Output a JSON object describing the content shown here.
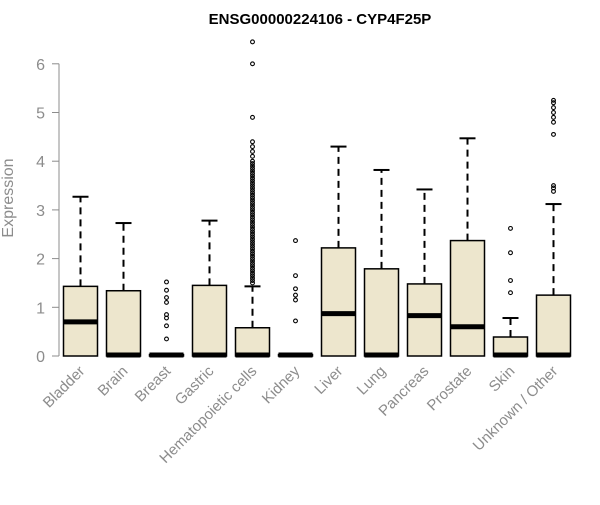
{
  "chart_data": {
    "type": "boxplot",
    "title": "ENSG00000224106 - CYP4F25P",
    "xlabel": "",
    "ylabel": "Expression",
    "ylim": [
      0,
      6.5
    ],
    "yticks": [
      0,
      1,
      2,
      3,
      4,
      5,
      6
    ],
    "grid": false,
    "legend": "none",
    "colors": {
      "box_fill": "#ede6cd",
      "box_stroke": "#000000",
      "axis_text": "#8c8c8c",
      "title": "#000000"
    },
    "categories": [
      "Bladder",
      "Brain",
      "Breast",
      "Gastric",
      "Hematopoietic cells",
      "Kidney",
      "Liver",
      "Lung",
      "Pancreas",
      "Prostate",
      "Skin",
      "Unknown / Other"
    ],
    "boxes": [
      {
        "category": "Bladder",
        "whisker_low": 0,
        "q1": 0,
        "median": 0.7,
        "q3": 1.43,
        "whisker_high": 3.27,
        "outliers": []
      },
      {
        "category": "Brain",
        "whisker_low": 0,
        "q1": 0,
        "median": 0.02,
        "q3": 1.34,
        "whisker_high": 2.73,
        "outliers": []
      },
      {
        "category": "Breast",
        "whisker_low": 0,
        "q1": 0,
        "median": 0.02,
        "q3": 0.03,
        "whisker_high": 0.04,
        "outliers": [
          0.35,
          0.62,
          0.78,
          0.85,
          1.1,
          1.2,
          1.35,
          1.52
        ]
      },
      {
        "category": "Gastric",
        "whisker_low": 0,
        "q1": 0,
        "median": 0.02,
        "q3": 1.45,
        "whisker_high": 2.78,
        "outliers": []
      },
      {
        "category": "Hematopoietic cells",
        "whisker_low": 0,
        "q1": 0,
        "median": 0.02,
        "q3": 0.58,
        "whisker_high": 1.43,
        "outliers": [
          1.5,
          1.55,
          1.6,
          1.65,
          1.7,
          1.75,
          1.8,
          1.85,
          1.9,
          1.95,
          2.0,
          2.05,
          2.1,
          2.15,
          2.2,
          2.25,
          2.3,
          2.35,
          2.4,
          2.45,
          2.5,
          2.55,
          2.6,
          2.65,
          2.7,
          2.75,
          2.8,
          2.85,
          2.9,
          2.95,
          3.0,
          3.05,
          3.1,
          3.15,
          3.2,
          3.25,
          3.3,
          3.35,
          3.4,
          3.45,
          3.5,
          3.55,
          3.6,
          3.65,
          3.7,
          3.75,
          3.8,
          3.85,
          3.9,
          3.95,
          4.0,
          4.1,
          4.2,
          4.3,
          4.4,
          4.9,
          6.0,
          6.45
        ]
      },
      {
        "category": "Kidney",
        "whisker_low": 0,
        "q1": 0,
        "median": 0.02,
        "q3": 0.03,
        "whisker_high": 0.04,
        "outliers": [
          0.72,
          1.15,
          1.25,
          1.38,
          1.65,
          2.37
        ]
      },
      {
        "category": "Liver",
        "whisker_low": 0,
        "q1": 0,
        "median": 0.87,
        "q3": 2.22,
        "whisker_high": 4.3,
        "outliers": []
      },
      {
        "category": "Lung",
        "whisker_low": 0,
        "q1": 0,
        "median": 0.02,
        "q3": 1.79,
        "whisker_high": 3.82,
        "outliers": []
      },
      {
        "category": "Pancreas",
        "whisker_low": 0,
        "q1": 0,
        "median": 0.83,
        "q3": 1.48,
        "whisker_high": 3.42,
        "outliers": []
      },
      {
        "category": "Prostate",
        "whisker_low": 0,
        "q1": 0,
        "median": 0.6,
        "q3": 2.37,
        "whisker_high": 4.47,
        "outliers": []
      },
      {
        "category": "Skin",
        "whisker_low": 0,
        "q1": 0,
        "median": 0.02,
        "q3": 0.39,
        "whisker_high": 0.78,
        "outliers": [
          1.3,
          1.55,
          2.12,
          2.62
        ]
      },
      {
        "category": "Unknown / Other",
        "whisker_low": 0,
        "q1": 0,
        "median": 0.02,
        "q3": 1.25,
        "whisker_high": 3.12,
        "outliers": [
          3.38,
          3.45,
          3.5,
          4.55,
          4.8,
          4.9,
          5.0,
          5.1,
          5.2,
          5.25
        ]
      }
    ]
  }
}
